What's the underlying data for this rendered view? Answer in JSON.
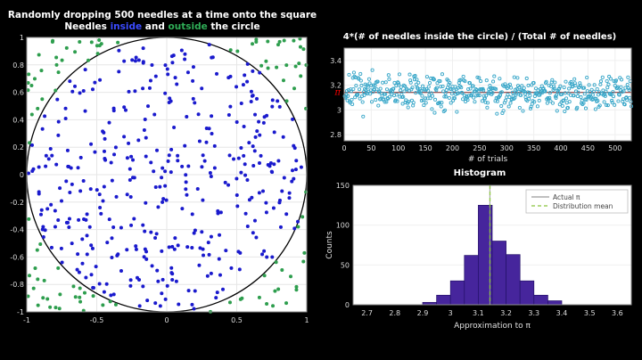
{
  "figure": {
    "background": "#000000",
    "panel_background": "#ffffff"
  },
  "left_chart": {
    "title_line1": "Randomly dropping 500 needles at a time onto the square",
    "title_line2": {
      "prefix": "Needles ",
      "inside_word": "inside",
      "middle": " and ",
      "outside_word": "outside",
      "suffix": " the circle"
    },
    "inside_color": "#3b4bff",
    "outside_color": "#2fae57"
  },
  "chart_data": [
    {
      "id": "needles-scatter",
      "type": "scatter",
      "title": "Randomly dropping 500 needles at a time onto the square / Needles inside and outside the circle",
      "n_points": 500,
      "seed": 20,
      "xlim": [
        -1,
        1
      ],
      "ylim": [
        -1,
        1
      ],
      "xticks": [
        -1,
        -0.5,
        0,
        0.5,
        1
      ],
      "yticks": [
        -1,
        -0.8,
        -0.6,
        -0.4,
        -0.2,
        0,
        0.2,
        0.4,
        0.6,
        0.8,
        1
      ],
      "grid": true,
      "series": [
        {
          "name": "needles inside the circle",
          "color": "#1a1acd"
        },
        {
          "name": "needles outside the circle",
          "color": "#2e9e4e"
        }
      ],
      "circle": {
        "center": [
          0,
          0
        ],
        "radius": 1,
        "color": "#000000"
      }
    },
    {
      "id": "pi-estimate-per-trial",
      "type": "scatter",
      "title": "4*(# of needles inside the circle) / (Total # of needles)",
      "xlabel": "# of trials",
      "n_points": 530,
      "seed": 7,
      "mean": 3.1416,
      "noise": 0.12,
      "xlim": [
        0,
        530
      ],
      "ylim": [
        2.75,
        3.5
      ],
      "xticks": [
        0,
        50,
        100,
        150,
        200,
        250,
        300,
        350,
        400,
        450,
        500
      ],
      "yticks": [
        2.8,
        3,
        3.2,
        3.4
      ],
      "grid": true,
      "marker_color": "#39a7c9",
      "pi_line": {
        "value": 3.1416,
        "color": "#7a1f1f",
        "tick_label": "π",
        "tick_color": "#ff0000"
      }
    },
    {
      "id": "pi-histogram",
      "type": "bar",
      "title": "Histogram",
      "xlabel": "Approximation to π",
      "ylabel": "Counts",
      "bin_start": 2.9,
      "bin_width": 0.05,
      "counts": [
        3,
        12,
        30,
        62,
        125,
        80,
        63,
        30,
        12,
        5
      ],
      "xlim": [
        2.65,
        3.65
      ],
      "ylim": [
        0,
        150
      ],
      "xticks": [
        2.7,
        2.8,
        2.9,
        3,
        3.1,
        3.2,
        3.3,
        3.4,
        3.5,
        3.6
      ],
      "yticks": [
        0,
        50,
        100,
        150
      ],
      "bar_color": "#46259c",
      "bar_edge": "#241168",
      "actual_pi": 3.1416,
      "distribution_mean": 3.142,
      "legend": [
        {
          "label": "Actual π",
          "line_color": "#9a9a9a",
          "dash": false
        },
        {
          "label": "Distribution mean",
          "line_color": "#8ac43f",
          "dash": true
        }
      ]
    }
  ]
}
